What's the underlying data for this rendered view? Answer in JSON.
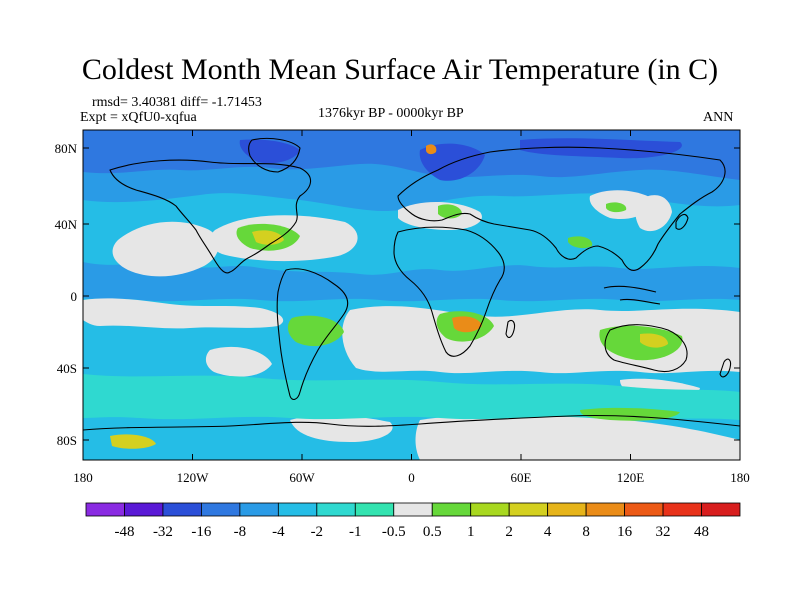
{
  "figure": {
    "title": "Coldest Month Mean Surface Air Temperature (in C)",
    "stats": "rmsd= 3.40381 diff= -1.71453",
    "experiment": "Expt = xQfU0-xqfua",
    "period": "1376kyr BP - 0000kyr BP",
    "season": "ANN"
  },
  "axes": {
    "x_ticks": [
      "180",
      "120W",
      "60W",
      "0",
      "60E",
      "120E",
      "180"
    ],
    "y_ticks": [
      "80N",
      "40N",
      "0",
      "40S",
      "80S"
    ]
  },
  "colorbar": {
    "labels": [
      "-48",
      "-32",
      "-16",
      "-8",
      "-4",
      "-2",
      "-1",
      "-0.5",
      "0.5",
      "1",
      "2",
      "4",
      "8",
      "16",
      "32",
      "48"
    ],
    "colors": [
      "#8a2be2",
      "#5a19d6",
      "#2b4fd8",
      "#2f78e0",
      "#2a9be6",
      "#25bde6",
      "#2fd9d0",
      "#33e3b0",
      "#e6e6e6",
      "#66d83a",
      "#a8d820",
      "#d4d020",
      "#e6b41a",
      "#ea8c18",
      "#ec5a16",
      "#e8321a",
      "#d81e1e"
    ]
  },
  "map_colors": {
    "ocean_base": "#25bde6",
    "neutral": "#e6e6e6",
    "light_cool": "#2fd9d0",
    "mild_cool": "#2a9be6",
    "cold": "#2f78e0",
    "very_cold": "#2b4fd8",
    "warm_green": "#66d83a",
    "warm_yellow": "#d4d020",
    "warm_orange": "#ea8c18",
    "hot": "#ec5a16",
    "coast": "#000000"
  }
}
